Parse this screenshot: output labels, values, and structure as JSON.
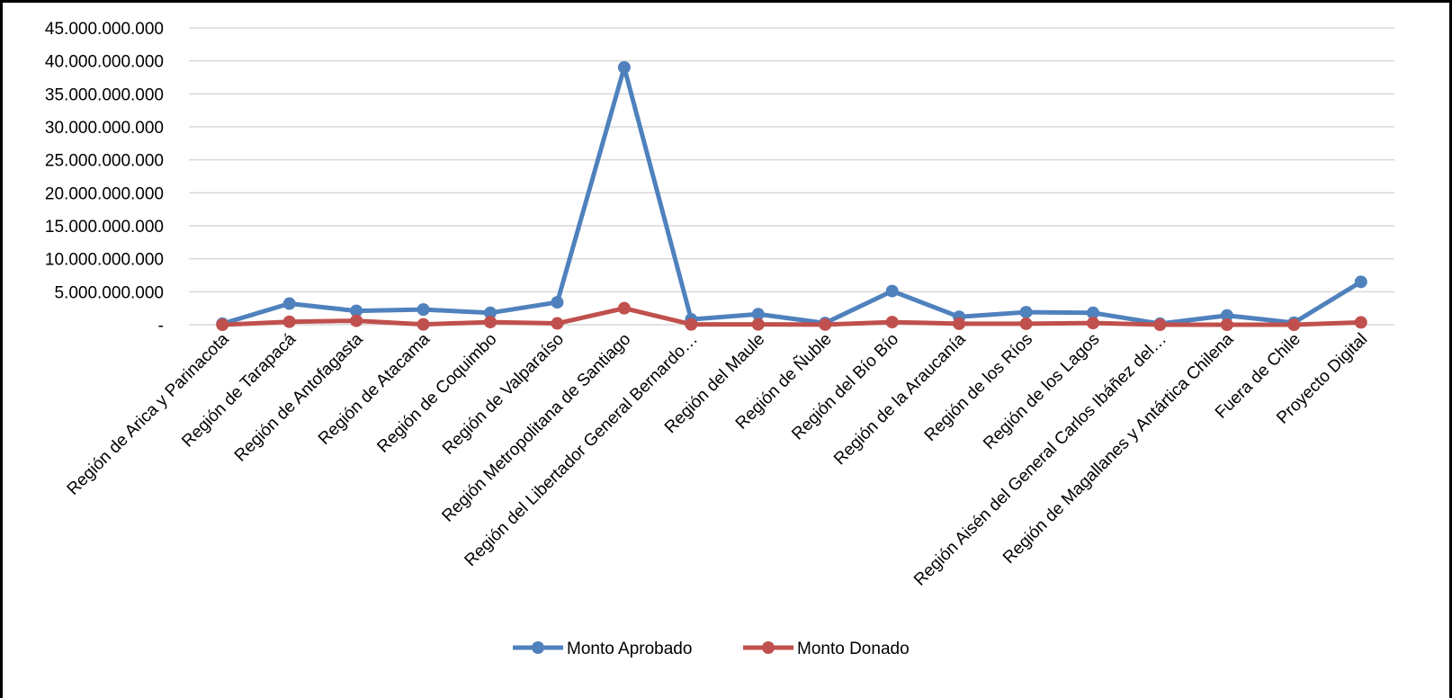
{
  "chart_data": {
    "type": "line",
    "title": "",
    "xlabel": "",
    "ylabel": "",
    "ylim": [
      0,
      45000000000
    ],
    "ytick_values": [
      0,
      5000000000,
      10000000000,
      15000000000,
      20000000000,
      25000000000,
      30000000000,
      35000000000,
      40000000000,
      45000000000
    ],
    "yticks": [
      "-",
      "5.000.000.000",
      "10.000.000.000",
      "15.000.000.000",
      "20.000.000.000",
      "25.000.000.000",
      "30.000.000.000",
      "35.000.000.000",
      "40.000.000.000",
      "45.000.000.000"
    ],
    "grid": true,
    "legend_position": "bottom",
    "categories": [
      "Región de Arica y Parinacota",
      "Región de Tarapacá",
      "Región de Antofagasta",
      "Región de Atacama",
      "Región de Coquimbo",
      "Región de Valparaíso",
      "Región Metropolitana de Santiago",
      "Región del Libertador General Bernardo…",
      "Región del Maule",
      "Región de Ñuble",
      "Región del Bío Bío",
      "Región de la Araucanía",
      "Región de los Ríos",
      "Región de los Lagos",
      "Región Aisén del General Carlos Ibáñez del…",
      "Región de Magallanes y Antártica Chilena",
      "Fuera de Chile",
      "Proyecto Digital"
    ],
    "series": [
      {
        "name": "Monto Aprobado",
        "color": "#4f81bd",
        "values": [
          150000000,
          3200000000,
          2100000000,
          2300000000,
          1800000000,
          3400000000,
          39000000000,
          800000000,
          1600000000,
          250000000,
          5100000000,
          1200000000,
          1900000000,
          1800000000,
          150000000,
          1400000000,
          300000000,
          6500000000
        ]
      },
      {
        "name": "Monto Donado",
        "color": "#c0504d",
        "values": [
          0,
          450000000,
          600000000,
          50000000,
          400000000,
          200000000,
          2500000000,
          50000000,
          50000000,
          20000000,
          400000000,
          150000000,
          150000000,
          250000000,
          0,
          0,
          0,
          350000000
        ]
      }
    ]
  }
}
